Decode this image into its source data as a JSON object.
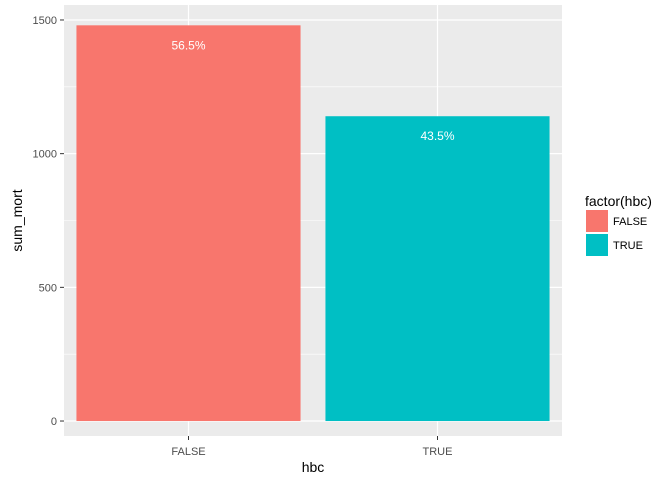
{
  "chart_data": {
    "type": "bar",
    "categories": [
      "FALSE",
      "TRUE"
    ],
    "values": [
      1480,
      1140
    ],
    "data_labels": [
      "56.5%",
      "43.5%"
    ],
    "colors": [
      "#F8766D",
      "#00BFC4"
    ],
    "xlabel": "hbc",
    "ylabel": "sum_mort",
    "ylim": [
      -56,
      1556
    ],
    "yticks": [
      0,
      500,
      1000,
      1500
    ],
    "ytick_labels": [
      "0",
      "500",
      "1000",
      "1500"
    ],
    "grid": true,
    "panel_background": "#EBEBEB",
    "legend": {
      "title": "factor(hbc)",
      "placement": "right",
      "entries": [
        "FALSE",
        "TRUE"
      ]
    }
  }
}
